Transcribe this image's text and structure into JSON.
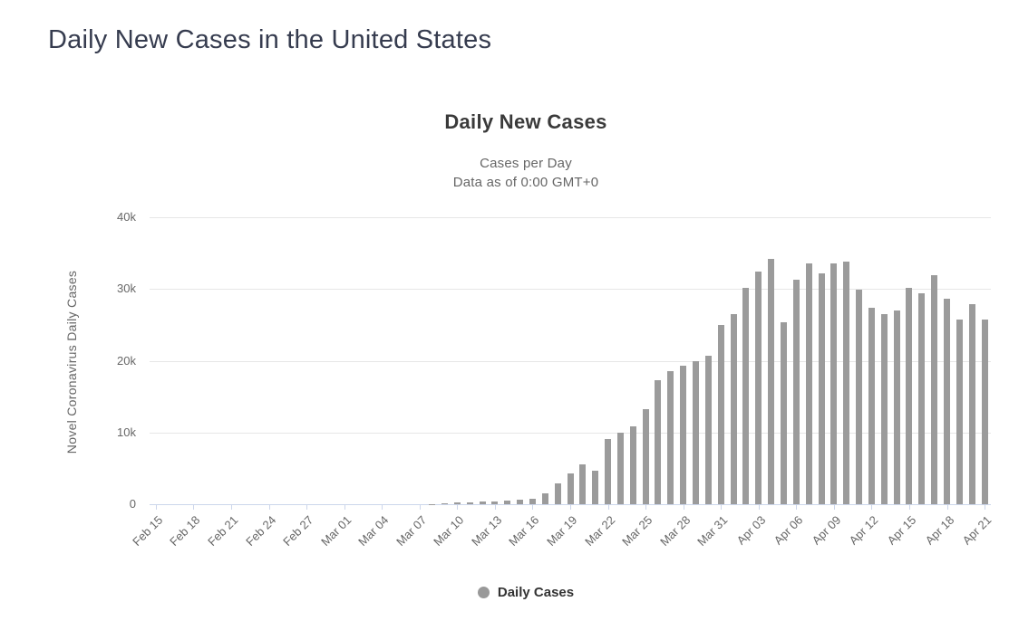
{
  "page": {
    "title": "Daily New Cases in the United States"
  },
  "chart": {
    "title": "Daily New Cases",
    "subtitle_line1": "Cases per Day",
    "subtitle_line2": "Data as of 0:00 GMT+0",
    "y_axis_title": "Novel Coronavirus Daily Cases",
    "legend_label": "Daily Cases"
  },
  "colors": {
    "bar": "#9b9b9b",
    "grid": "#e6e6e6",
    "axis_line": "#ccd6eb",
    "chart_title_text": "#3a3a3a",
    "subtitle_text": "#666666",
    "tick_text": "#666666",
    "page_title_text": "#363c4f",
    "legend_text": "#333333",
    "legend_marker": "#999999"
  },
  "chart_data": {
    "type": "bar",
    "title": "Daily New Cases",
    "subtitle": "Cases per Day / Data as of 0:00 GMT+0",
    "xlabel": "",
    "ylabel": "Novel Coronavirus Daily Cases",
    "ylim": [
      0,
      40000
    ],
    "grid": true,
    "legend": [
      "Daily Cases"
    ],
    "legend_position": "bottom",
    "xtick_step": 3,
    "yticks": [
      {
        "value": 0,
        "label": "0"
      },
      {
        "value": 10000,
        "label": "10k"
      },
      {
        "value": 20000,
        "label": "20k"
      },
      {
        "value": 30000,
        "label": "30k"
      },
      {
        "value": 40000,
        "label": "40k"
      }
    ],
    "categories": [
      "Feb 15",
      "Feb 16",
      "Feb 17",
      "Feb 18",
      "Feb 19",
      "Feb 20",
      "Feb 21",
      "Feb 22",
      "Feb 23",
      "Feb 24",
      "Feb 25",
      "Feb 26",
      "Feb 27",
      "Feb 28",
      "Feb 29",
      "Mar 01",
      "Mar 02",
      "Mar 03",
      "Mar 04",
      "Mar 05",
      "Mar 06",
      "Mar 07",
      "Mar 08",
      "Mar 09",
      "Mar 10",
      "Mar 11",
      "Mar 12",
      "Mar 13",
      "Mar 14",
      "Mar 15",
      "Mar 16",
      "Mar 17",
      "Mar 18",
      "Mar 19",
      "Mar 20",
      "Mar 21",
      "Mar 22",
      "Mar 23",
      "Mar 24",
      "Mar 25",
      "Mar 26",
      "Mar 27",
      "Mar 28",
      "Mar 29",
      "Mar 30",
      "Mar 31",
      "Apr 01",
      "Apr 02",
      "Apr 03",
      "Apr 04",
      "Apr 05",
      "Apr 06",
      "Apr 07",
      "Apr 08",
      "Apr 09",
      "Apr 10",
      "Apr 11",
      "Apr 12",
      "Apr 13",
      "Apr 14",
      "Apr 15",
      "Apr 16",
      "Apr 17",
      "Apr 18",
      "Apr 19",
      "Apr 20",
      "Apr 21"
    ],
    "values": [
      0,
      0,
      0,
      0,
      0,
      0,
      0,
      0,
      0,
      0,
      0,
      0,
      0,
      0,
      0,
      0,
      0,
      0,
      0,
      0,
      0,
      0,
      60,
      130,
      300,
      320,
      350,
      420,
      510,
      630,
      800,
      1480,
      2850,
      4300,
      5530,
      4680,
      9100,
      10000,
      10850,
      13300,
      17250,
      18600,
      19350,
      19950,
      20700,
      24950,
      26550,
      30200,
      32450,
      34200,
      25400,
      31300,
      33550,
      32150,
      33600,
      33800,
      29900,
      27350,
      26500,
      27000,
      30150,
      29450,
      31950,
      28650,
      25800,
      27900,
      25800
    ]
  }
}
